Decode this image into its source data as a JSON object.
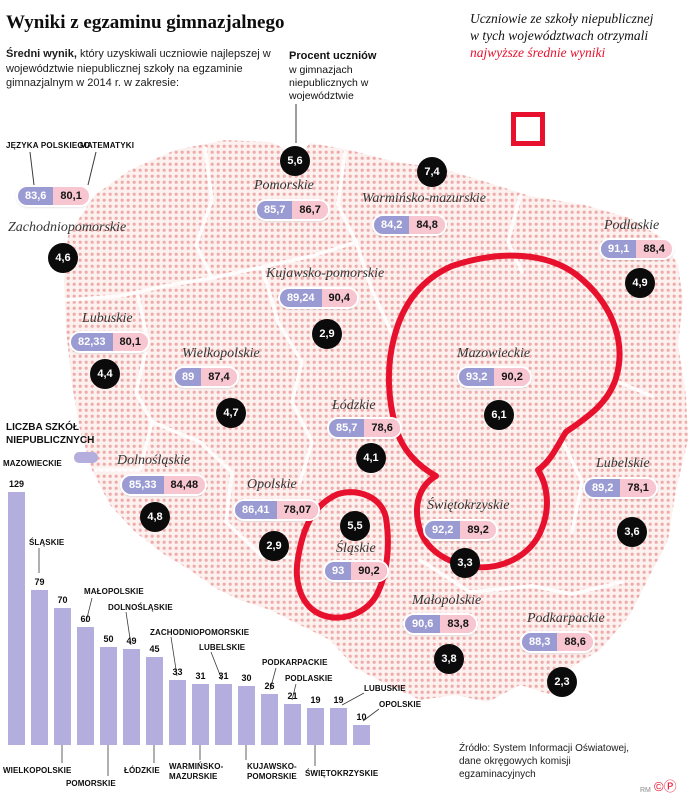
{
  "title": "Wyniki z egzaminu gimnazjalnego",
  "intro": {
    "bold": "Średni wynik,",
    "rest": " który uzyskiwali uczniowie najlepszej w województwie niepublicznej szkoły na egzaminie gimnazjalnym w 2014 r. w zakresie:"
  },
  "annotations": {
    "percent_bold": "Procent uczniów",
    "percent_rest": "w gimnazjach niepublicznych w województwie",
    "highest_plain": "Uczniowie ze szkoły niepublicznej w tych województwach otrzymali ",
    "highest_red": "najwyższe średnie wyniki"
  },
  "chart_data": [
    {
      "type": "map",
      "series_labels": {
        "polish": "JĘZYKA POLSKIEGO",
        "math": "MATEMATYKI"
      },
      "regions": [
        {
          "name": "Zachodniopomorskie",
          "polish": "83,6",
          "math": "80,1",
          "percent_nonpublic": "4,6",
          "highlighted": false
        },
        {
          "name": "Pomorskie",
          "polish": "85,7",
          "math": "86,7",
          "percent_nonpublic": "5,6",
          "highlighted": false
        },
        {
          "name": "Warmińsko-mazurskie",
          "polish": "84,2",
          "math": "84,8",
          "percent_nonpublic": "7,4",
          "highlighted": false
        },
        {
          "name": "Podlaskie",
          "polish": "91,1",
          "math": "88,4",
          "percent_nonpublic": "4,9",
          "highlighted": false
        },
        {
          "name": "Kujawsko-pomorskie",
          "polish": "89,24",
          "math": "90,4",
          "percent_nonpublic": "2,9",
          "highlighted": false
        },
        {
          "name": "Lubuskie",
          "polish": "82,33",
          "math": "80,1",
          "percent_nonpublic": "4,4",
          "highlighted": false
        },
        {
          "name": "Wielkopolskie",
          "polish": "89",
          "math": "87,4",
          "percent_nonpublic": "4,7",
          "highlighted": false
        },
        {
          "name": "Mazowieckie",
          "polish": "93,2",
          "math": "90,2",
          "percent_nonpublic": "6,1",
          "highlighted": true
        },
        {
          "name": "Łódzkie",
          "polish": "85,7",
          "math": "78,6",
          "percent_nonpublic": "4,1",
          "highlighted": false
        },
        {
          "name": "Lubelskie",
          "polish": "89,2",
          "math": "78,1",
          "percent_nonpublic": "3,6",
          "highlighted": false
        },
        {
          "name": "Dolnośląskie",
          "polish": "85,33",
          "math": "84,48",
          "percent_nonpublic": "4,8",
          "highlighted": false
        },
        {
          "name": "Opolskie",
          "polish": "86,41",
          "math": "78,07",
          "percent_nonpublic": "2,9",
          "highlighted": false
        },
        {
          "name": "Śląskie",
          "polish": "93",
          "math": "90,2",
          "percent_nonpublic": "5,5",
          "highlighted": true
        },
        {
          "name": "Świętokrzyskie",
          "polish": "92,2",
          "math": "89,2",
          "percent_nonpublic": "3,3",
          "highlighted": true
        },
        {
          "name": "Małopolskie",
          "polish": "90,6",
          "math": "83,8",
          "percent_nonpublic": "3,8",
          "highlighted": false
        },
        {
          "name": "Podkarpackie",
          "polish": "88,3",
          "math": "88,6",
          "percent_nonpublic": "2,3",
          "highlighted": false
        }
      ]
    },
    {
      "type": "bar",
      "title": "LICZBA SZKÓŁ NIEPUBLICZNYCH",
      "categories": [
        "MAZOWIECKIE",
        "ŚLĄSKIE",
        "WIELKOPOLSKIE",
        "MAŁOPOLSKIE",
        "POMORSKIE",
        "DOLNOŚLĄSKIE",
        "ŁÓDZKIE",
        "ZACHODNIOPOMORSKIE",
        "WARMIŃSKO-MAZURSKIE",
        "LUBELSKIE",
        "KUJAWSKO-POMORSKIE",
        "PODKARPACKIE",
        "PODLASKIE",
        "ŚWIĘTOKRZYSKIE",
        "LUBUSKIE",
        "OPOLSKIE"
      ],
      "values": [
        129,
        79,
        70,
        60,
        50,
        49,
        45,
        33,
        31,
        31,
        30,
        26,
        21,
        19,
        19,
        10
      ],
      "bar_color": "#b3aedd",
      "ylim": [
        0,
        129
      ]
    }
  ],
  "source": {
    "text": "Źródło: System Informacji Oświatowej,\ndane okręgowych komisji\negzaminacyjnych"
  },
  "credits": {
    "initials": "RM",
    "marks": "©Ⓟ"
  }
}
